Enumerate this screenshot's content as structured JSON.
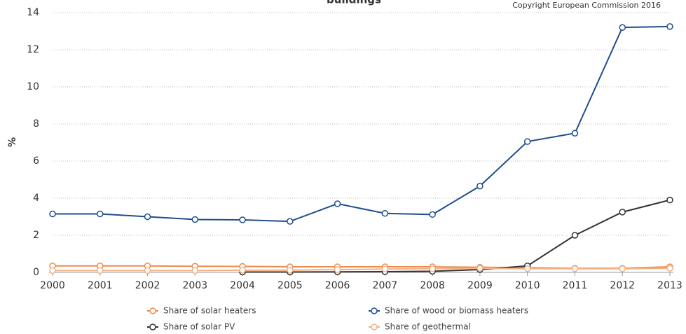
{
  "chart_data": {
    "type": "line",
    "title": "buildings",
    "annotation": "Copyright European Commission 2016",
    "ylabel": "%",
    "x": [
      2000,
      2001,
      2002,
      2003,
      2004,
      2005,
      2006,
      2007,
      2008,
      2009,
      2010,
      2011,
      2012,
      2013
    ],
    "xlim": [
      2000,
      2013
    ],
    "xticks": [
      2000,
      2001,
      2002,
      2003,
      2004,
      2005,
      2006,
      2007,
      2008,
      2009,
      2010,
      2011,
      2012,
      2013
    ],
    "ylim": [
      0,
      14
    ],
    "yticks": [
      0,
      2,
      4,
      6,
      8,
      10,
      12,
      14
    ],
    "grid": true,
    "legend": "bottom",
    "series": [
      {
        "name": "Share of solar heaters",
        "color": "#ef8a4c",
        "values": [
          0.35,
          0.35,
          0.35,
          0.33,
          0.32,
          0.3,
          0.3,
          0.3,
          0.3,
          0.28,
          0.25,
          0.22,
          0.22,
          0.3
        ]
      },
      {
        "name": "Share of wood or biomass heaters",
        "color": "#1f4e8c",
        "values": [
          3.15,
          3.15,
          3.0,
          2.85,
          2.83,
          2.75,
          3.7,
          3.18,
          3.12,
          4.65,
          7.05,
          7.5,
          13.2,
          13.25
        ]
      },
      {
        "name": "Share of solar PV",
        "color": "#333333",
        "values": [
          null,
          null,
          null,
          null,
          0.02,
          0.02,
          0.03,
          0.04,
          0.06,
          0.15,
          0.35,
          2.0,
          3.25,
          3.9
        ]
      },
      {
        "name": "Share of geothermal",
        "color": "#f4b083",
        "values": [
          0.1,
          0.1,
          0.1,
          0.1,
          0.12,
          0.12,
          0.15,
          0.18,
          0.2,
          0.22,
          0.2,
          0.2,
          0.2,
          0.22
        ]
      }
    ]
  }
}
